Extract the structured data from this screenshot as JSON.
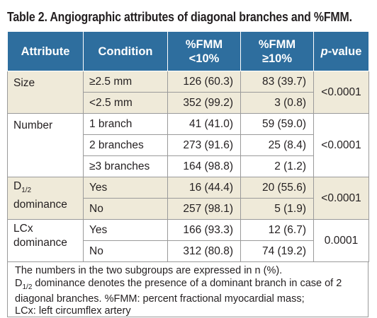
{
  "title": "Table 2. Angiographic attributes of diagonal branches and %FMM.",
  "header": {
    "attribute": "Attribute",
    "condition": "Condition",
    "fmm_lt_line1": "%FMM",
    "fmm_lt_line2": "<10%",
    "fmm_ge_line1": "%FMM",
    "fmm_ge_line2": "≥10%",
    "pvalue_italic": "p",
    "pvalue_rest": "-value"
  },
  "groups": [
    {
      "attribute": "Size",
      "pvalue": "<0.0001",
      "rows": [
        {
          "condition": "≥2.5 mm",
          "lt10": "126 (60.3)",
          "ge10": "83 (39.7)"
        },
        {
          "condition": "<2.5 mm",
          "lt10": "352 (99.2)",
          "ge10": "3 (0.8)"
        }
      ]
    },
    {
      "attribute": "Number",
      "pvalue": "<0.0001",
      "rows": [
        {
          "condition": "1 branch",
          "lt10": "41 (41.0)",
          "ge10": "59 (59.0)"
        },
        {
          "condition": "2 branches",
          "lt10": "273 (91.6)",
          "ge10": "25 (8.4)"
        },
        {
          "condition": "≥3 branches",
          "lt10": "164 (98.8)",
          "ge10": "2 (1.2)"
        }
      ]
    },
    {
      "attribute_main": "D",
      "attribute_sub": "1/2",
      "attribute_line2": "dominance",
      "pvalue": "<0.0001",
      "rows": [
        {
          "condition": "Yes",
          "lt10": "16 (44.4)",
          "ge10": "20 (55.6)"
        },
        {
          "condition": "No",
          "lt10": "257 (98.1)",
          "ge10": "5 (1.9)"
        }
      ]
    },
    {
      "attribute_line1": "LCx",
      "attribute_line2": "dominance",
      "pvalue": "0.0001",
      "rows": [
        {
          "condition": "Yes",
          "lt10": "166 (93.3)",
          "ge10": "12 (6.7)"
        },
        {
          "condition": "No",
          "lt10": "312 (80.8)",
          "ge10": "74 (19.2)"
        }
      ]
    }
  ],
  "footnotes": {
    "line1": "The numbers in the two subgroups are expressed in n (%).",
    "d_main": "D",
    "d_sub": "1/2",
    "line2_rest": " dominance denotes the presence of a dominant branch in case of 2 diagonal branches. %FMM: percent fractional myocardial mass;",
    "line3": "LCx: left circumflex artery"
  },
  "colors": {
    "header_bg": "#2e6e9e",
    "shade_bg": "#efead9",
    "border": "#9a9a9a"
  }
}
